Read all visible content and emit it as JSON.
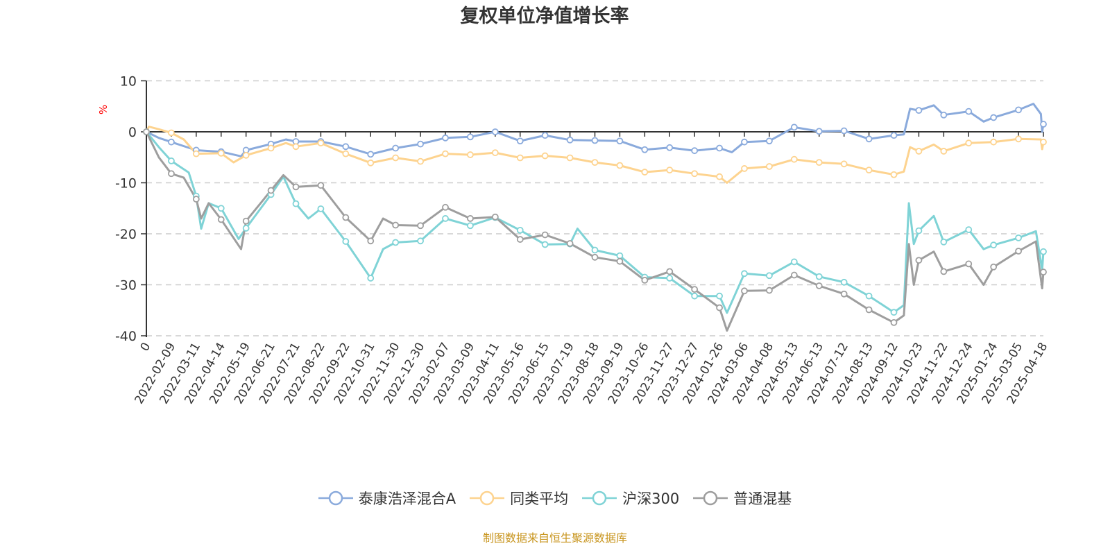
{
  "chart_data": {
    "type": "line",
    "title": "复权单位净值增长率",
    "ylabel": "%",
    "xlabel": "",
    "ylim": [
      -40,
      10
    ],
    "yticks": [
      10,
      0,
      -10,
      -20,
      -30,
      -40
    ],
    "grid": true,
    "legend_position": "bottom",
    "categories": [
      "0",
      "2022-02-09",
      "2022-03-11",
      "2022-04-14",
      "2022-05-19",
      "2022-06-21",
      "2022-07-21",
      "2022-08-22",
      "2022-09-22",
      "2022-10-31",
      "2022-11-30",
      "2022-12-30",
      "2023-02-07",
      "2023-03-09",
      "2023-04-11",
      "2023-05-16",
      "2023-06-15",
      "2023-07-19",
      "2023-08-18",
      "2023-09-19",
      "2023-10-26",
      "2023-11-27",
      "2023-12-27",
      "2024-01-26",
      "2024-03-06",
      "2024-04-08",
      "2024-05-13",
      "2024-06-13",
      "2024-07-12",
      "2024-08-13",
      "2024-09-12",
      "2024-10-23",
      "2024-11-22",
      "2024-12-24",
      "2025-01-24",
      "2025-03-05",
      "2025-04-18"
    ],
    "series": [
      {
        "name": "泰康浩泽混合A",
        "color": "#8aaadc",
        "points": [
          [
            0,
            0
          ],
          [
            0.5,
            -1.2
          ],
          [
            1,
            -2.0
          ],
          [
            2,
            -3.6
          ],
          [
            3,
            -3.9
          ],
          [
            3.8,
            -4.8
          ],
          [
            4,
            -3.6
          ],
          [
            5,
            -2.4
          ],
          [
            5.6,
            -1.5
          ],
          [
            6,
            -1.9
          ],
          [
            7,
            -1.9
          ],
          [
            8,
            -2.9
          ],
          [
            9,
            -4.4
          ],
          [
            10,
            -3.2
          ],
          [
            11,
            -2.4
          ],
          [
            12,
            -1.2
          ],
          [
            13,
            -1.0
          ],
          [
            14,
            0
          ],
          [
            15,
            -1.8
          ],
          [
            16,
            -0.7
          ],
          [
            17,
            -1.6
          ],
          [
            18,
            -1.7
          ],
          [
            19,
            -1.8
          ],
          [
            20,
            -3.5
          ],
          [
            21,
            -3.1
          ],
          [
            22,
            -3.7
          ],
          [
            23,
            -3.2
          ],
          [
            23.5,
            -4.0
          ],
          [
            24,
            -2.0
          ],
          [
            25,
            -1.8
          ],
          [
            26,
            0.9
          ],
          [
            27,
            0.1
          ],
          [
            28,
            0.2
          ],
          [
            29,
            -1.4
          ],
          [
            30,
            -0.7
          ],
          [
            30.4,
            -0.5
          ],
          [
            30.65,
            4.5
          ],
          [
            31,
            4.2
          ],
          [
            31.6,
            5.2
          ],
          [
            32,
            3.3
          ],
          [
            33,
            4.0
          ],
          [
            33.6,
            2.0
          ],
          [
            34,
            2.8
          ],
          [
            35,
            4.3
          ],
          [
            35.6,
            5.5
          ],
          [
            35.9,
            3.5
          ],
          [
            35.95,
            0
          ],
          [
            36,
            1.5
          ]
        ]
      },
      {
        "name": "同类平均",
        "color": "#fdd38f",
        "points": [
          [
            0,
            0
          ],
          [
            0.1,
            1
          ],
          [
            0.5,
            0.5
          ],
          [
            1,
            -0.2
          ],
          [
            1.5,
            -1.5
          ],
          [
            2,
            -4.3
          ],
          [
            3,
            -4.2
          ],
          [
            3.5,
            -6.0
          ],
          [
            4,
            -4.6
          ],
          [
            5,
            -3.2
          ],
          [
            5.6,
            -2.2
          ],
          [
            6,
            -2.9
          ],
          [
            7,
            -2.2
          ],
          [
            8,
            -4.3
          ],
          [
            9,
            -6.1
          ],
          [
            10,
            -5.1
          ],
          [
            11,
            -5.8
          ],
          [
            12,
            -4.3
          ],
          [
            13,
            -4.5
          ],
          [
            14,
            -4.1
          ],
          [
            15,
            -5.1
          ],
          [
            16,
            -4.7
          ],
          [
            17,
            -5.1
          ],
          [
            18,
            -6.0
          ],
          [
            19,
            -6.6
          ],
          [
            20,
            -7.9
          ],
          [
            21,
            -7.5
          ],
          [
            22,
            -8.2
          ],
          [
            23,
            -8.8
          ],
          [
            23.3,
            -10
          ],
          [
            24,
            -7.2
          ],
          [
            25,
            -6.8
          ],
          [
            26,
            -5.4
          ],
          [
            27,
            -6.0
          ],
          [
            28,
            -6.3
          ],
          [
            29,
            -7.5
          ],
          [
            30,
            -8.4
          ],
          [
            30.4,
            -7.8
          ],
          [
            30.65,
            -3.0
          ],
          [
            31,
            -3.8
          ],
          [
            31.6,
            -2.5
          ],
          [
            32,
            -3.8
          ],
          [
            33,
            -2.2
          ],
          [
            34,
            -2.0
          ],
          [
            35,
            -1.4
          ],
          [
            35.9,
            -1.5
          ],
          [
            35.95,
            -3.4
          ],
          [
            36,
            -2.0
          ]
        ]
      },
      {
        "name": "沪深300",
        "color": "#7fd3d6",
        "points": [
          [
            0,
            0
          ],
          [
            0.5,
            -3
          ],
          [
            1,
            -5.7
          ],
          [
            1.7,
            -8
          ],
          [
            2,
            -12.6
          ],
          [
            2.2,
            -19
          ],
          [
            2.5,
            -14
          ],
          [
            3,
            -15.0
          ],
          [
            3.7,
            -21
          ],
          [
            4,
            -18.9
          ],
          [
            5,
            -12.3
          ],
          [
            5.5,
            -8.8
          ],
          [
            6,
            -14.1
          ],
          [
            6.5,
            -17
          ],
          [
            7,
            -15.1
          ],
          [
            8,
            -21.5
          ],
          [
            9,
            -28.7
          ],
          [
            9.5,
            -23
          ],
          [
            10,
            -21.7
          ],
          [
            11,
            -21.4
          ],
          [
            12,
            -17.0
          ],
          [
            13,
            -18.4
          ],
          [
            14,
            -16.8
          ],
          [
            15,
            -19.3
          ],
          [
            16,
            -22.1
          ],
          [
            17,
            -22.0
          ],
          [
            17.3,
            -19
          ],
          [
            18,
            -23.2
          ],
          [
            19,
            -24.3
          ],
          [
            20,
            -28.5
          ],
          [
            21,
            -28.7
          ],
          [
            22,
            -32.2
          ],
          [
            23,
            -32.2
          ],
          [
            23.3,
            -35.5
          ],
          [
            24,
            -27.8
          ],
          [
            25,
            -28.2
          ],
          [
            26,
            -25.5
          ],
          [
            27,
            -28.4
          ],
          [
            28,
            -29.5
          ],
          [
            29,
            -32.2
          ],
          [
            30,
            -35.4
          ],
          [
            30.4,
            -34
          ],
          [
            30.6,
            -14
          ],
          [
            30.8,
            -22
          ],
          [
            31,
            -19.4
          ],
          [
            31.6,
            -16.5
          ],
          [
            32,
            -21.6
          ],
          [
            33,
            -19.2
          ],
          [
            33.6,
            -23
          ],
          [
            34,
            -22.2
          ],
          [
            35,
            -20.8
          ],
          [
            35.7,
            -19.5
          ],
          [
            35.95,
            -27.1
          ],
          [
            36,
            -23.5
          ]
        ]
      },
      {
        "name": "普通混基",
        "color": "#9e9e9e",
        "points": [
          [
            0,
            0
          ],
          [
            0.5,
            -5
          ],
          [
            1,
            -8.2
          ],
          [
            1.5,
            -9
          ],
          [
            2,
            -13.2
          ],
          [
            2.2,
            -17
          ],
          [
            2.5,
            -14
          ],
          [
            3,
            -17.2
          ],
          [
            3.8,
            -23
          ],
          [
            4,
            -17.5
          ],
          [
            5,
            -11.5
          ],
          [
            5.5,
            -8.5
          ],
          [
            6,
            -10.8
          ],
          [
            7,
            -10.5
          ],
          [
            8,
            -16.8
          ],
          [
            9,
            -21.4
          ],
          [
            9.5,
            -17
          ],
          [
            10,
            -18.3
          ],
          [
            11,
            -18.4
          ],
          [
            12,
            -14.8
          ],
          [
            13,
            -17.0
          ],
          [
            14,
            -16.7
          ],
          [
            15,
            -21.1
          ],
          [
            16,
            -20.2
          ],
          [
            17,
            -21.9
          ],
          [
            18,
            -24.6
          ],
          [
            19,
            -25.4
          ],
          [
            20,
            -29.1
          ],
          [
            21,
            -27.4
          ],
          [
            22,
            -30.9
          ],
          [
            23,
            -34.5
          ],
          [
            23.3,
            -39
          ],
          [
            24,
            -31.2
          ],
          [
            25,
            -31.1
          ],
          [
            26,
            -28.1
          ],
          [
            27,
            -30.2
          ],
          [
            28,
            -31.8
          ],
          [
            29,
            -34.9
          ],
          [
            30,
            -37.4
          ],
          [
            30.4,
            -36
          ],
          [
            30.6,
            -22
          ],
          [
            30.8,
            -30
          ],
          [
            31,
            -25.2
          ],
          [
            31.6,
            -23.5
          ],
          [
            32,
            -27.4
          ],
          [
            33,
            -25.9
          ],
          [
            33.6,
            -30
          ],
          [
            34,
            -26.5
          ],
          [
            35,
            -23.4
          ],
          [
            35.7,
            -21.5
          ],
          [
            35.95,
            -30.7
          ],
          [
            36,
            -27.5
          ]
        ]
      }
    ]
  },
  "source": {
    "text": "制图数据来自恒生聚源数据库",
    "color": "#c8951e"
  },
  "ylabel_color": "#ff0000"
}
